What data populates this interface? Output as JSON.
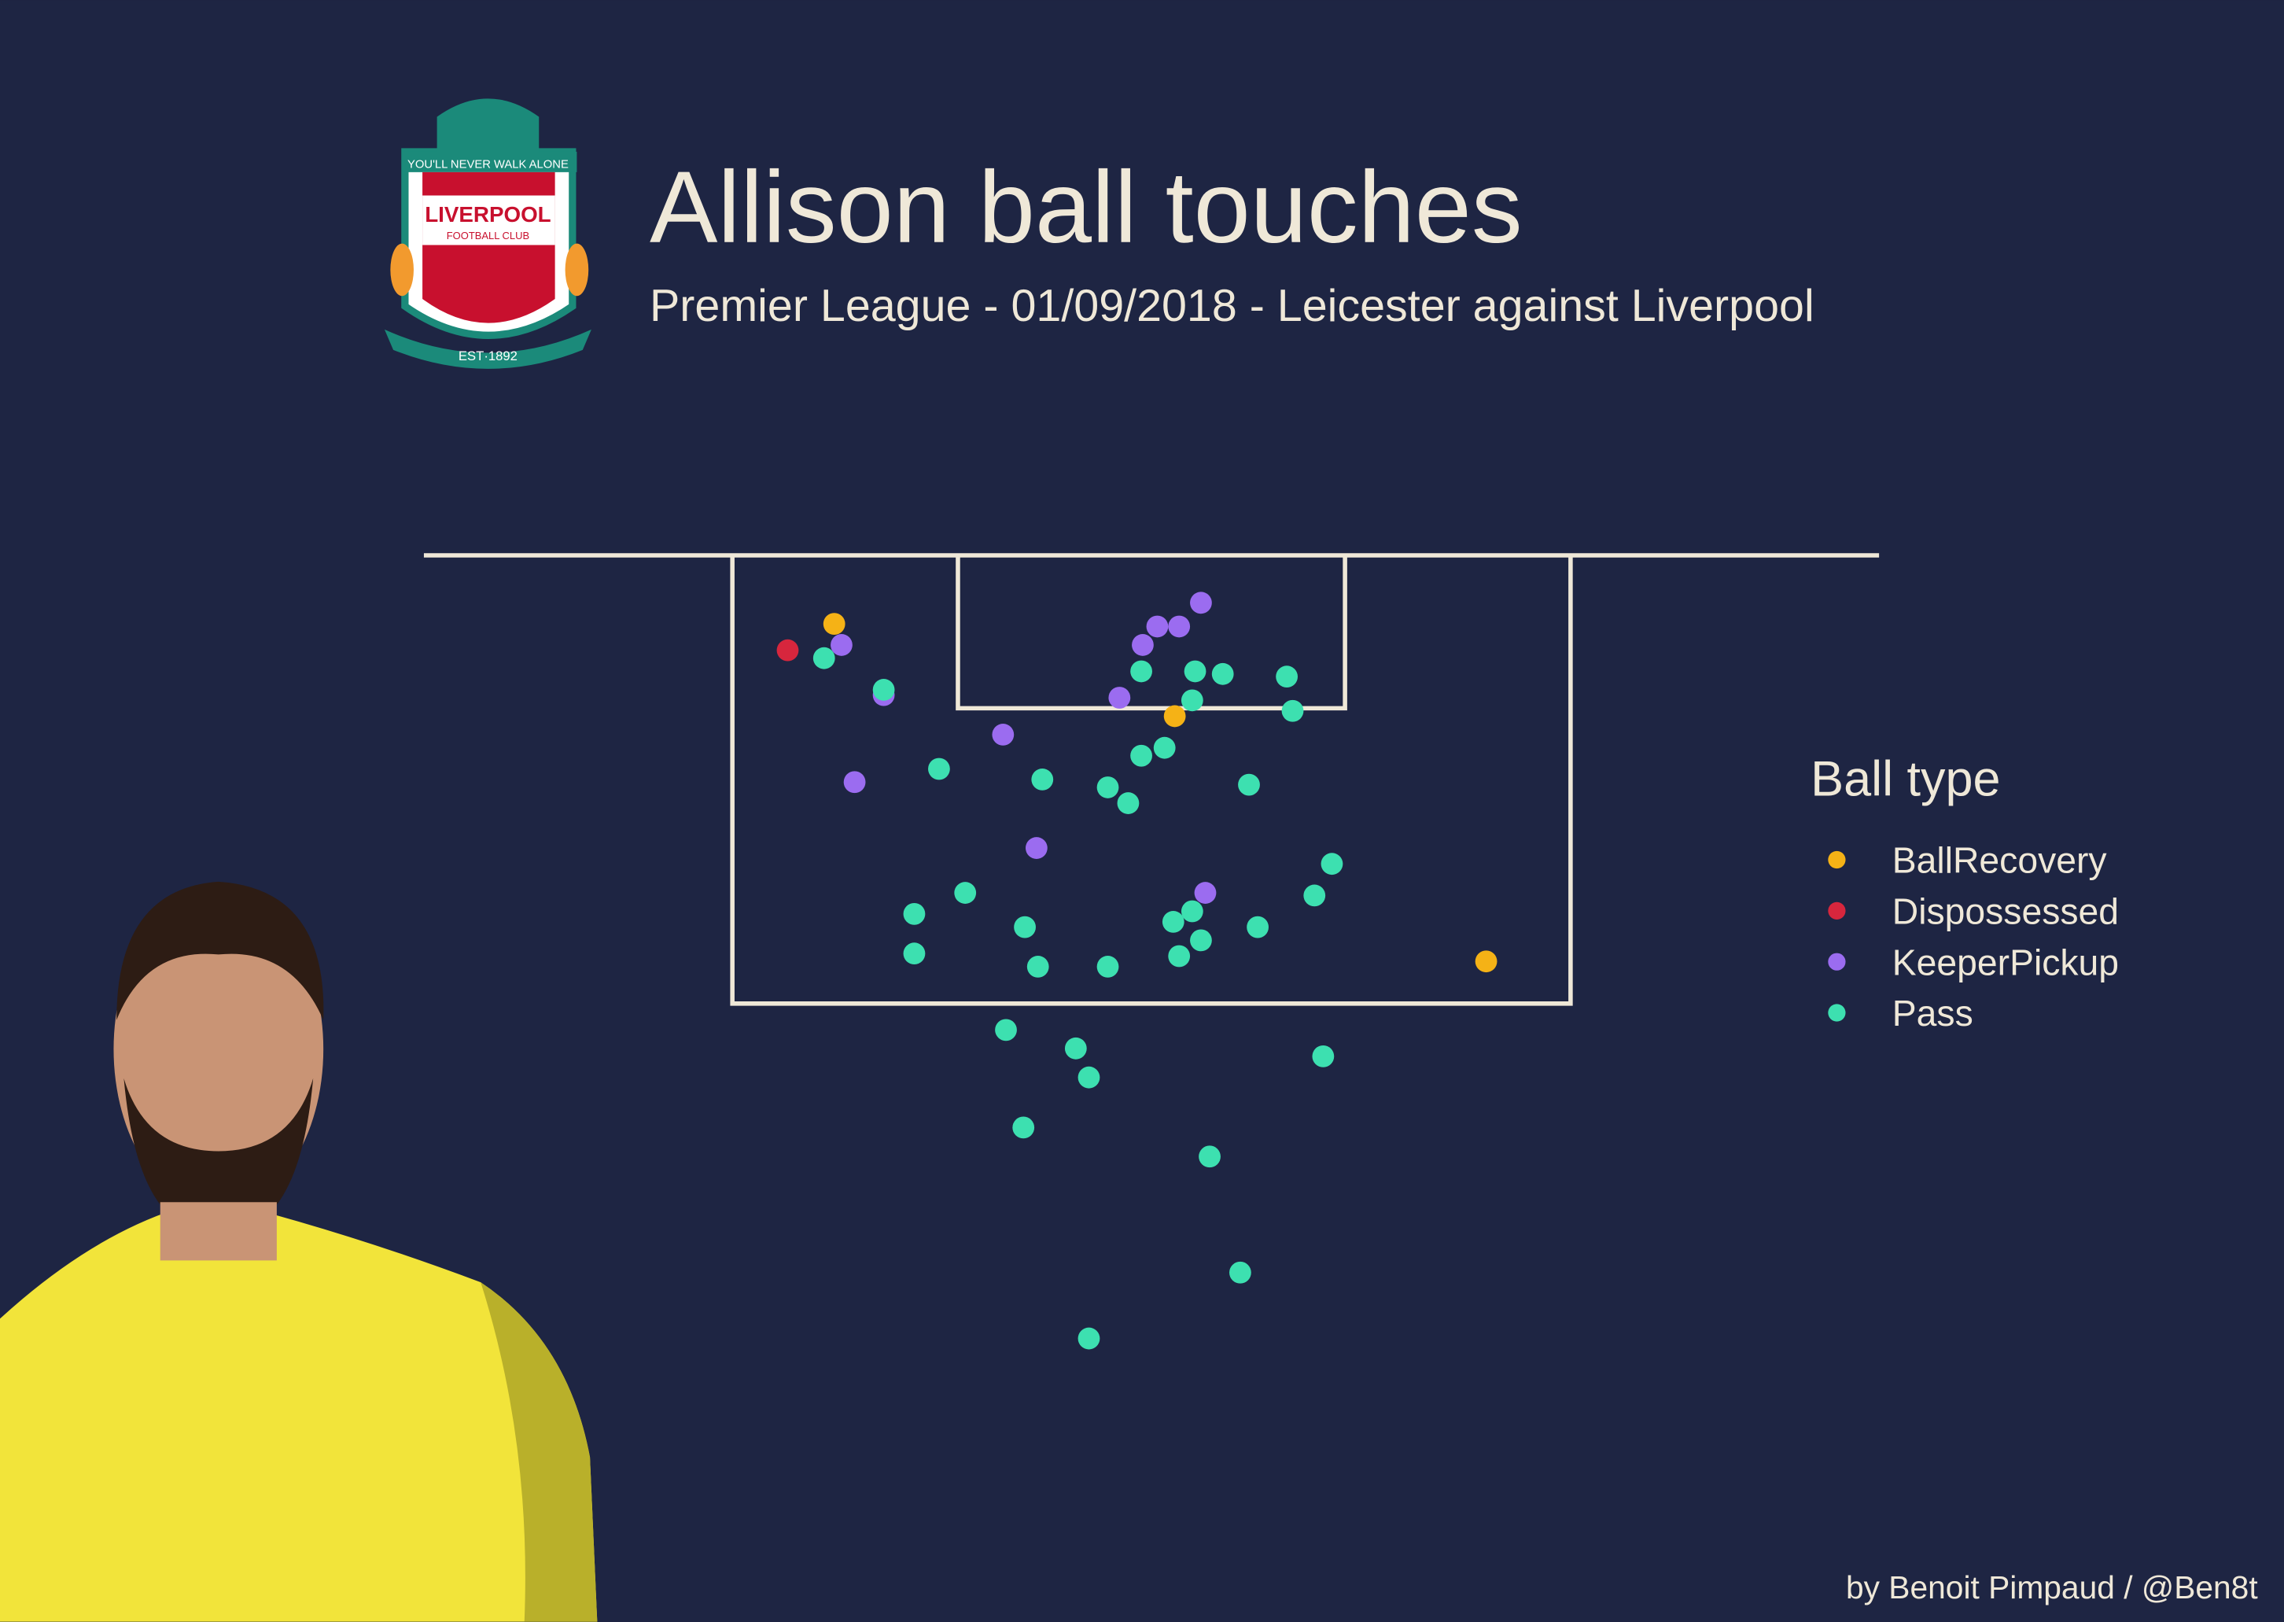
{
  "chart_data": {
    "type": "scatter",
    "title": "Allison ball touches",
    "subtitle": "Premier League - 01/09/2018 - Leicester against Liverpool",
    "legend_title": "Ball type",
    "legend_position": "right",
    "y_inverted": true,
    "xlim": [
      0,
      100
    ],
    "ylim": [
      0,
      35
    ],
    "series": [
      {
        "name": "BallRecovery",
        "color": "#f5b216",
        "x": [
          28.2,
          51.6,
          73.0
        ],
        "y": [
          2.6,
          6.1,
          15.4
        ]
      },
      {
        "name": "Dispossessed",
        "color": "#d7263d",
        "x": [
          25.0
        ],
        "y": [
          3.6
        ]
      },
      {
        "name": "KeeperPickup",
        "color": "#9b6cf0",
        "x": [
          28.7,
          31.6,
          29.6,
          39.8,
          42.1,
          47.8,
          49.4,
          50.4,
          51.9,
          53.4,
          53.7
        ],
        "y": [
          3.4,
          5.3,
          8.6,
          6.8,
          11.1,
          5.4,
          3.4,
          2.7,
          2.7,
          1.8,
          12.8
        ]
      },
      {
        "name": "Pass",
        "color": "#3de0b0",
        "x": [
          27.5,
          31.6,
          35.4,
          42.5,
          47.0,
          48.4,
          49.3,
          50.9,
          49.3,
          53.0,
          54.9,
          52.8,
          59.3,
          59.7,
          56.7,
          62.4,
          61.2,
          57.3,
          52.8,
          51.5,
          53.4,
          51.9,
          47.0,
          42.2,
          41.3,
          37.2,
          33.7,
          33.7,
          40.0,
          44.8,
          45.7,
          41.2,
          54.0,
          61.8,
          56.1,
          45.7
        ],
        "y": [
          3.9,
          5.1,
          8.1,
          8.5,
          8.8,
          9.4,
          7.6,
          7.3,
          4.4,
          4.4,
          4.5,
          5.5,
          4.6,
          5.9,
          8.7,
          11.7,
          12.9,
          14.1,
          13.5,
          13.9,
          14.6,
          15.2,
          15.6,
          15.6,
          14.1,
          12.8,
          13.6,
          15.1,
          18.0,
          18.7,
          19.8,
          21.7,
          22.8,
          19.0,
          27.2,
          29.7
        ]
      }
    ]
  },
  "logo": {
    "motto": "YOU'LL NEVER WALK ALONE",
    "club": "LIVERPOOL",
    "sub": "FOOTBALL CLUB",
    "est": "EST·1892"
  },
  "credit": "by Benoit Pimpaud / @Ben8t"
}
